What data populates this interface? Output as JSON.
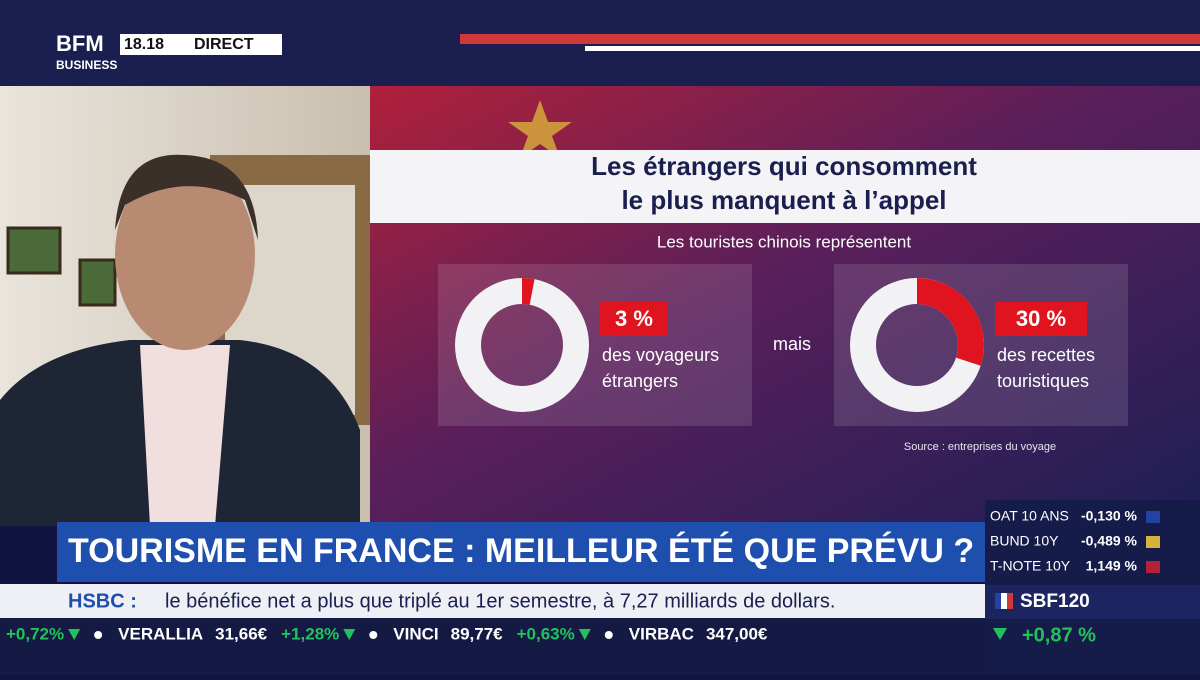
{
  "header": {
    "logo_top": "BFM",
    "logo_bottom": "BUSINESS",
    "time": "18.18",
    "live": "DIRECT"
  },
  "graphic": {
    "title_lines": [
      "Les étrangers qui consomment",
      "le plus manquent à l’appel"
    ],
    "subtitle": "Les touristes chinois représentent",
    "donuts": [
      {
        "value": 3,
        "label": "3 %",
        "caption_lines": [
          "des voyageurs",
          "étrangers"
        ]
      },
      {
        "value": 30,
        "label": "30 %",
        "caption_lines": [
          "des recettes",
          "touristiques"
        ]
      }
    ],
    "connector": "mais",
    "source": "Source : entreprises du voyage"
  },
  "headline": "TOURISME EN FRANCE : MEILLEUR ÉTÉ QUE PRÉVU ?",
  "news": {
    "label": "HSBC :",
    "text": "le bénéfice net a plus que triplé au 1er semestre, à 7,27 milliards de dollars."
  },
  "markets": [
    {
      "name": "OAT 10 ANS",
      "value": "-0,130 %"
    },
    {
      "name": "BUND 10Y",
      "value": "-0,489 %"
    },
    {
      "name": "T-NOTE 10Y",
      "value": "1,149 %"
    }
  ],
  "index": {
    "name": "SBF120",
    "change": "+0,87 %"
  },
  "ticker": [
    {
      "change": "+0,72%"
    },
    {
      "name": "VERALLIA",
      "price": "31,66€",
      "change": "+1,28%"
    },
    {
      "name": "VINCI",
      "price": "89,77€",
      "change": "+0,63%"
    },
    {
      "name": "VIRBAC",
      "price": "347,00€"
    }
  ]
}
